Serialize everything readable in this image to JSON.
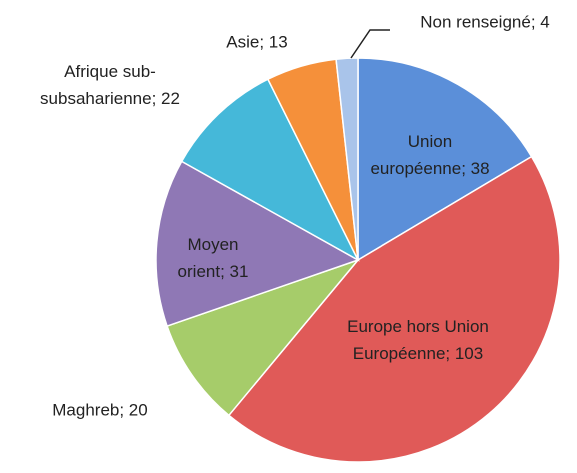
{
  "chart_data": {
    "type": "pie",
    "values": [
      38,
      103,
      20,
      31,
      22,
      13,
      4
    ],
    "value_labels": [
      "Union européenne; 38",
      "Europe hors Union Européenne; 103",
      "Maghreb; 20",
      "Moyen orient; 31",
      "Afrique sub-subsaharienne; 22",
      "Asie; 13",
      "Non renseigné; 4"
    ],
    "colors": [
      "#5b8fd9",
      "#e05a58",
      "#a6cc6a",
      "#8f78b5",
      "#45b8d9",
      "#f5903a",
      "#a9c4ea"
    ]
  }
}
